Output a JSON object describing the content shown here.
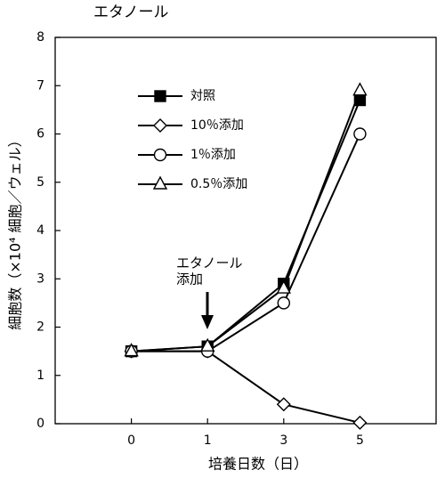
{
  "chart_data": {
    "type": "line",
    "title": "エタノール",
    "xlabel": "培養日数（日）",
    "ylabel": "細胞数（×10⁴ 細胞／ウェル）",
    "annotations": [
      "エタノール",
      "添加"
    ],
    "categories": [
      "0",
      "1",
      "3",
      "5"
    ],
    "series": [
      {
        "name": "対照",
        "color": "#000000",
        "marker": "square-filled",
        "values": [
          1.5,
          1.6,
          2.9,
          6.7
        ]
      },
      {
        "name": "10％添加",
        "color": "#000000",
        "marker": "diamond-open",
        "values": [
          1.5,
          1.5,
          0.4,
          0.02
        ]
      },
      {
        "name": "1％添加",
        "color": "#000000",
        "marker": "circle-open",
        "values": [
          1.5,
          1.5,
          2.5,
          6.0
        ]
      },
      {
        "name": "0.5％添加",
        "color": "#000000",
        "marker": "triangle-open",
        "values": [
          1.5,
          1.6,
          2.8,
          6.9
        ]
      }
    ],
    "ylim": [
      0,
      8
    ],
    "yticks": [
      0,
      1,
      2,
      3,
      4,
      5,
      6,
      7,
      8
    ],
    "grid": false
  }
}
